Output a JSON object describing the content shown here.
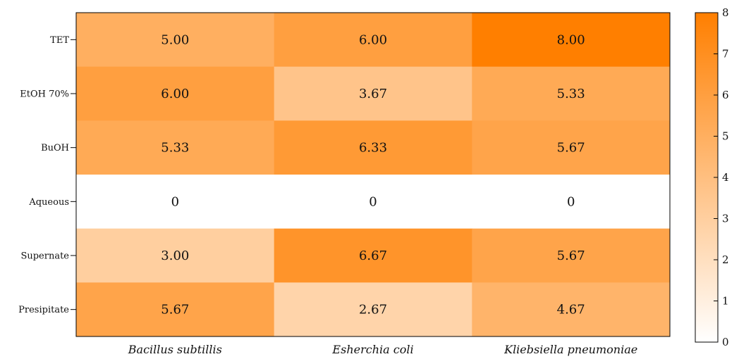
{
  "chart_data": {
    "type": "heatmap",
    "title": "",
    "xlabel": "",
    "ylabel": "",
    "columns": [
      "Bacillus subtillis",
      "Esherchia coli",
      "Kliebsiella pneumoniae"
    ],
    "rows": [
      "TET",
      "EtOH 70%",
      "BuOH",
      "Aqueous",
      "Supernate",
      "Presipitate"
    ],
    "values": [
      [
        5.0,
        6.0,
        8.0
      ],
      [
        6.0,
        3.67,
        5.33
      ],
      [
        5.33,
        6.33,
        5.67
      ],
      [
        0,
        0,
        0
      ],
      [
        3.0,
        6.67,
        5.67
      ],
      [
        5.67,
        2.67,
        4.67
      ]
    ],
    "labels": [
      [
        "5.00",
        "6.00",
        "8.00"
      ],
      [
        "6.00",
        "3.67",
        "5.33"
      ],
      [
        "5.33",
        "6.33",
        "5.67"
      ],
      [
        "0",
        "0",
        "0"
      ],
      [
        "3.00",
        "6.67",
        "5.67"
      ],
      [
        "5.67",
        "2.67",
        "4.67"
      ]
    ],
    "colorbar": {
      "min": 0,
      "max": 8,
      "ticks": [
        "0",
        "1",
        "2",
        "3",
        "4",
        "5",
        "6",
        "7",
        "8"
      ],
      "color_low": "#ffffff",
      "color_high": "#ff7f00"
    },
    "grid": false
  }
}
